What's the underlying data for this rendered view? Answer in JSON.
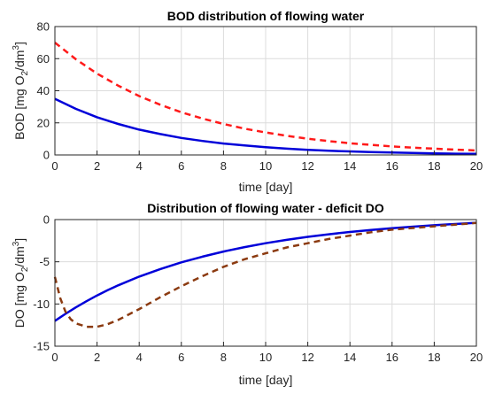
{
  "chart_data": [
    {
      "type": "line",
      "title": "BOD distribution of flowing water",
      "xlabel": "time [day]",
      "ylabel": "BOD [mg O2/dm3]",
      "ylabel_parts": {
        "main": "BOD [mg O",
        "sub": "2",
        "mid": "/dm",
        "sup": "3",
        "end": "]"
      },
      "xlim": [
        0,
        20
      ],
      "ylim": [
        0,
        80
      ],
      "xticks": [
        "0",
        "2",
        "4",
        "6",
        "8",
        "10",
        "12",
        "14",
        "16",
        "18",
        "20"
      ],
      "yticks": [
        "0",
        "20",
        "40",
        "60",
        "80"
      ],
      "grid": true,
      "x": [
        0,
        1,
        2,
        3,
        4,
        5,
        6,
        7,
        8,
        9,
        10,
        11,
        12,
        13,
        14,
        15,
        16,
        17,
        18,
        19,
        20
      ],
      "series": [
        {
          "color": "#0000d9",
          "style": "solid",
          "values": [
            35.0,
            28.7,
            23.5,
            19.3,
            15.8,
            13.0,
            10.6,
            8.7,
            7.1,
            5.9,
            4.8,
            3.9,
            3.2,
            2.6,
            2.2,
            1.8,
            1.5,
            1.2,
            1.0,
            0.8,
            0.7
          ]
        },
        {
          "color": "#ff1a1a",
          "style": "dashed",
          "values": [
            70.0,
            59.6,
            50.7,
            43.2,
            36.7,
            31.3,
            26.6,
            22.7,
            19.3,
            16.4,
            14.0,
            11.9,
            10.1,
            8.6,
            7.3,
            6.3,
            5.3,
            4.5,
            3.9,
            3.3,
            2.8
          ]
        }
      ]
    },
    {
      "type": "line",
      "title": "Distribution of flowing water - deficit DO",
      "xlabel": "time [day]",
      "ylabel": "DO [mg O2/dm3]",
      "ylabel_parts": {
        "main": "DO [mg O",
        "sub": "2",
        "mid": "/dm",
        "sup": "3",
        "end": "]"
      },
      "xlim": [
        0,
        20
      ],
      "ylim": [
        -15,
        0
      ],
      "xticks": [
        "0",
        "2",
        "4",
        "6",
        "8",
        "10",
        "12",
        "14",
        "16",
        "18",
        "20"
      ],
      "yticks": [
        "-15",
        "-10",
        "-5",
        "0"
      ],
      "grid": true,
      "x": [
        0,
        0.25,
        0.5,
        0.75,
        1,
        1.5,
        2,
        2.5,
        3,
        4,
        5,
        6,
        7,
        8,
        9,
        10,
        11,
        12,
        13,
        14,
        15,
        16,
        17,
        18,
        19,
        20
      ],
      "series": [
        {
          "color": "#0000d9",
          "style": "solid",
          "values": [
            -12.0,
            -11.58,
            -11.17,
            -10.78,
            -10.4,
            -9.67,
            -8.99,
            -8.37,
            -7.79,
            -6.76,
            -5.86,
            -5.07,
            -4.39,
            -3.79,
            -3.26,
            -2.8,
            -2.4,
            -2.05,
            -1.74,
            -1.47,
            -1.23,
            -1.02,
            -0.84,
            -0.67,
            -0.52,
            -0.38
          ]
        },
        {
          "color": "#8b3a10",
          "style": "dashed",
          "values": [
            -6.8,
            -9.3,
            -10.9,
            -11.8,
            -12.3,
            -12.7,
            -12.7,
            -12.4,
            -11.9,
            -10.6,
            -9.2,
            -7.9,
            -6.7,
            -5.6,
            -4.7,
            -4.0,
            -3.3,
            -2.8,
            -2.3,
            -1.9,
            -1.5,
            -1.2,
            -1.0,
            -0.8,
            -0.6,
            -0.4
          ]
        }
      ]
    }
  ]
}
